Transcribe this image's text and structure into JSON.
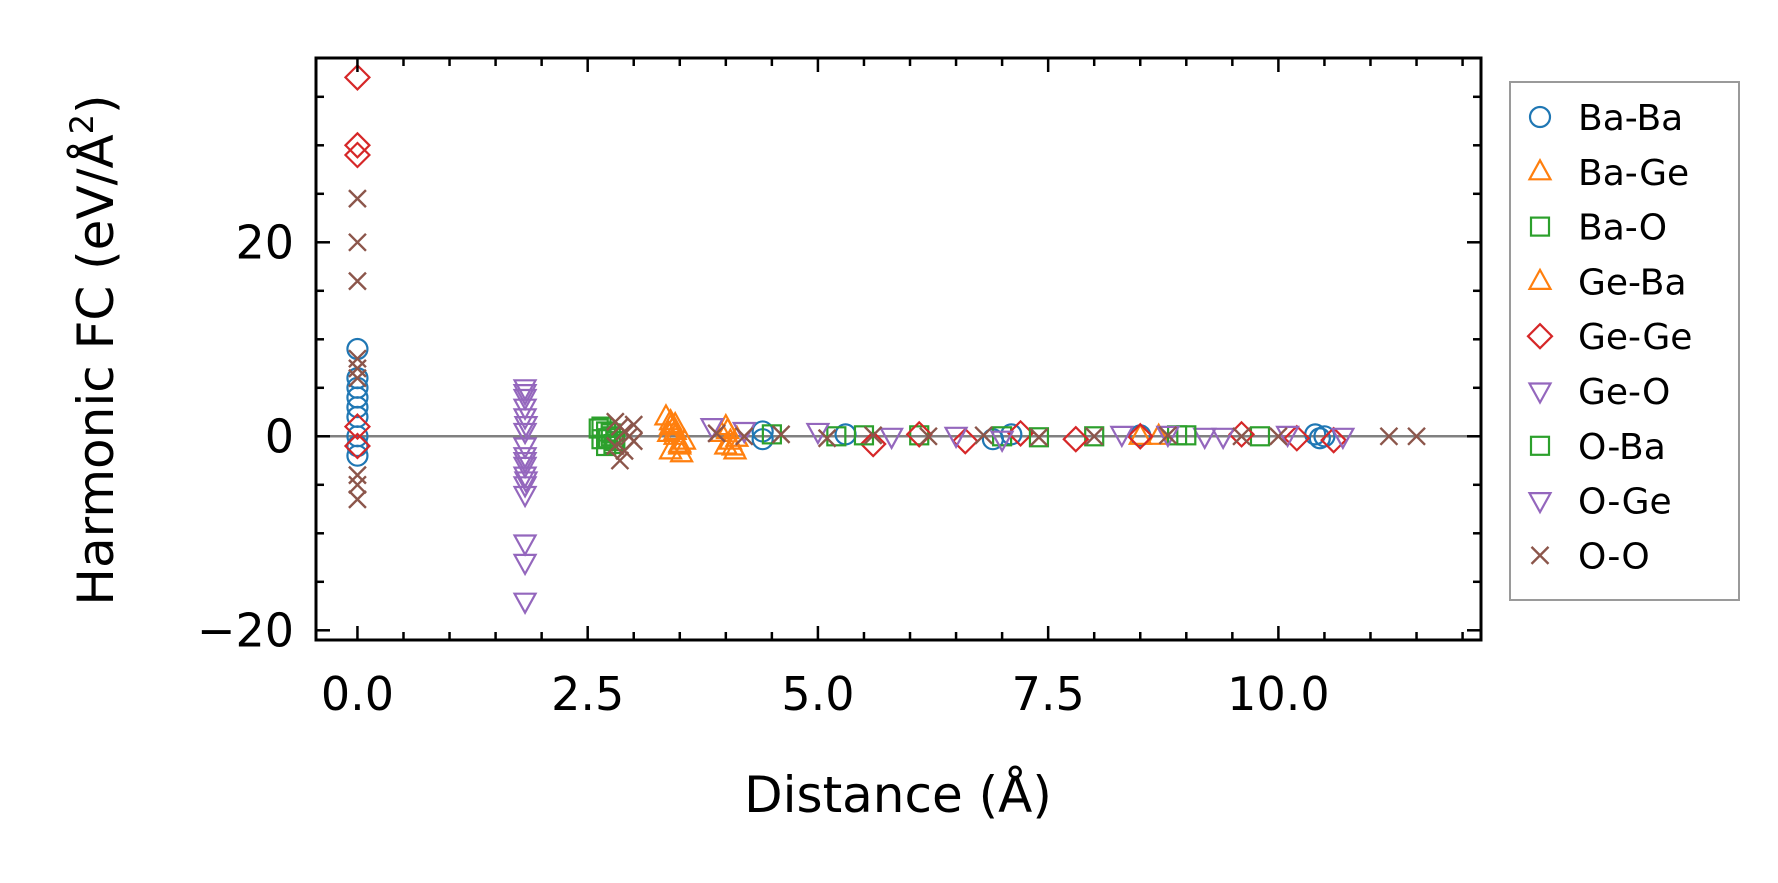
{
  "chart_data": {
    "type": "scatter",
    "title": "",
    "xlabel": "Distance (Å)",
    "ylabel": "Harmonic FC (eV/Å²)",
    "ylabel_parts": {
      "main": "Harmonic FC (eV/Å",
      "sup": "2",
      "close": ")"
    },
    "xlim": [
      -0.45,
      12.2
    ],
    "ylim": [
      -21,
      39
    ],
    "xticks": [
      0.0,
      2.5,
      5.0,
      7.5,
      10.0
    ],
    "xtick_labels": [
      "0.0",
      "2.5",
      "5.0",
      "7.5",
      "10.0"
    ],
    "yticks": [
      -20,
      0,
      20
    ],
    "ytick_labels": [
      "−20",
      "0",
      "20"
    ],
    "hline": 0,
    "legend_position": "outside-right",
    "series": [
      {
        "name": "Ba-Ba",
        "marker": "circle",
        "color": "#1f77b4",
        "x": [
          0,
          0,
          0,
          0,
          0,
          0,
          0,
          0,
          0,
          4.4,
          4.4,
          5.3,
          6.9,
          7.1,
          8.5,
          10.4,
          10.45,
          10.5
        ],
        "y": [
          9,
          6,
          4,
          2,
          0,
          -1,
          -2,
          5,
          3,
          0.5,
          -0.3,
          0.2,
          -0.3,
          0.2,
          0.1,
          0.2,
          -0.2,
          0
        ]
      },
      {
        "name": "Ba-Ge",
        "marker": "triangle-up",
        "color": "#ff7f0e",
        "x": [
          3.35,
          3.4,
          3.45,
          3.5,
          3.4,
          3.45,
          3.55,
          3.4,
          4.0,
          4.05,
          4.1,
          3.95,
          4.0,
          8.5,
          8.7
        ],
        "y": [
          2,
          1,
          0,
          -1,
          -1.5,
          0.5,
          -0.5,
          1.5,
          1,
          -0.5,
          -1.5,
          0.3,
          -1,
          0,
          0
        ]
      },
      {
        "name": "Ba-O",
        "marker": "square",
        "color": "#2ca02c",
        "x": [
          2.65,
          2.7,
          2.75,
          2.8,
          2.7,
          2.75,
          2.65,
          4.5,
          5.2,
          6.1,
          7.0,
          8.0,
          8.9,
          9.8
        ],
        "y": [
          1,
          0.5,
          0,
          -0.5,
          -1,
          0.3,
          -0.3,
          0.2,
          0,
          0.1,
          0,
          0,
          0.1,
          0
        ]
      },
      {
        "name": "Ge-Ba",
        "marker": "triangle-up",
        "color": "#ff7f0e",
        "x": [
          3.45,
          3.5,
          3.38,
          3.52,
          4.02,
          4.08,
          4.12
        ],
        "y": [
          1.2,
          -0.8,
          0.3,
          -1.8,
          0.6,
          -1.1,
          -0.2
        ]
      },
      {
        "name": "Ge-Ge",
        "marker": "diamond",
        "color": "#d62728",
        "x": [
          0,
          0,
          0,
          0,
          0,
          5.6,
          6.1,
          6.6,
          7.2,
          7.8,
          8.5,
          9.6,
          10.2,
          10.6
        ],
        "y": [
          37,
          30,
          29,
          1,
          -1,
          -0.8,
          0.2,
          -0.5,
          0.3,
          -0.3,
          0,
          0.2,
          -0.2,
          -0.4
        ]
      },
      {
        "name": "Ge-O",
        "marker": "triangle-down",
        "color": "#9467bd",
        "x": [
          1.82,
          1.82,
          1.82,
          1.82,
          1.82,
          1.82,
          1.82,
          1.82,
          1.82,
          1.82,
          1.82,
          1.82,
          1.82,
          1.82,
          1.82,
          1.82,
          3.85,
          5.0,
          5.8,
          7.0,
          8.3,
          9.2,
          10.1,
          10.7
        ],
        "y": [
          5,
          4.5,
          4,
          3,
          2,
          0.5,
          -1,
          -2,
          -2.5,
          -3,
          -4,
          -5,
          -6,
          -11,
          -13,
          -17,
          1,
          0.5,
          0,
          -0.3,
          0.2,
          0,
          0.2,
          0
        ]
      },
      {
        "name": "O-Ba",
        "marker": "square",
        "color": "#2ca02c",
        "x": [
          2.62,
          2.78,
          2.72,
          5.5,
          7.4,
          9.0
        ],
        "y": [
          0.8,
          -0.8,
          -0.2,
          0.1,
          -0.1,
          0.1
        ]
      },
      {
        "name": "O-Ge",
        "marker": "triangle-down",
        "color": "#9467bd",
        "x": [
          1.83,
          1.83,
          4.2,
          6.5,
          8.8,
          9.4
        ],
        "y": [
          1.2,
          -4.5,
          0.6,
          0.1,
          0.2,
          0
        ]
      },
      {
        "name": "O-O",
        "marker": "x",
        "color": "#8c564b",
        "x": [
          0,
          0,
          0,
          0,
          0,
          0,
          0,
          0,
          0,
          2.8,
          2.85,
          2.9,
          2.95,
          3.0,
          2.8,
          2.9,
          3.0,
          2.85,
          3.9,
          4.2,
          4.6,
          5.1,
          5.6,
          6.2,
          6.8,
          7.4,
          8.0,
          8.8,
          9.6,
          10.0,
          11.2,
          11.5
        ],
        "y": [
          24.5,
          20,
          16,
          8,
          7,
          6,
          -4,
          -5,
          -6.5,
          1.5,
          1,
          0.5,
          0,
          -0.5,
          -1,
          -1.5,
          1.2,
          -2.5,
          0.3,
          0,
          0.2,
          -0.2,
          0.1,
          0,
          0.1,
          -0.1,
          0,
          0.1,
          0,
          0,
          0,
          0
        ]
      }
    ]
  }
}
